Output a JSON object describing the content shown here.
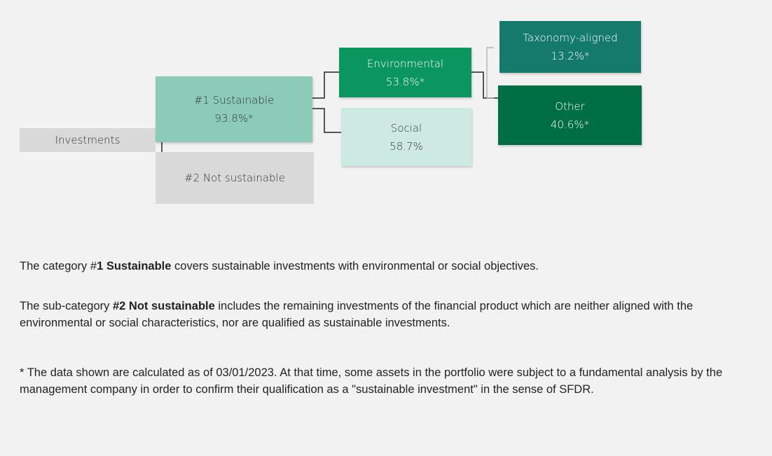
{
  "nodes": [
    {
      "label": "Investments"
    },
    {
      "label": "#1 Sustainable",
      "value": "93.8%*"
    },
    {
      "label": "#2 Not sustainable"
    },
    {
      "label": "Environmental",
      "value": "53.8%*"
    },
    {
      "label": "Social",
      "value": "58.7%"
    },
    {
      "label": "Taxonomy-aligned",
      "value": "13.2%*"
    },
    {
      "label": "Other",
      "value": "40.6%*"
    }
  ],
  "paragraphs": [
    {
      "before": "The category #",
      "bold": "1 Sustainable",
      "after": " covers sustainable investments with environmental or social objectives."
    },
    {
      "before": "The sub-category ",
      "bold": "#2 Not sustainable",
      "after": " includes the remaining investments of the financial product which are neither aligned with the environmental or social characteristics, nor are qualified as sustainable investments."
    }
  ],
  "footnote": "* The data shown are calculated as of 03/01/2023. At that time, some assets in the portfolio were subject to a fundamental analysis by the management company in order to confirm their qualification as a \"sustainable investment\" in the sense of SFDR."
}
